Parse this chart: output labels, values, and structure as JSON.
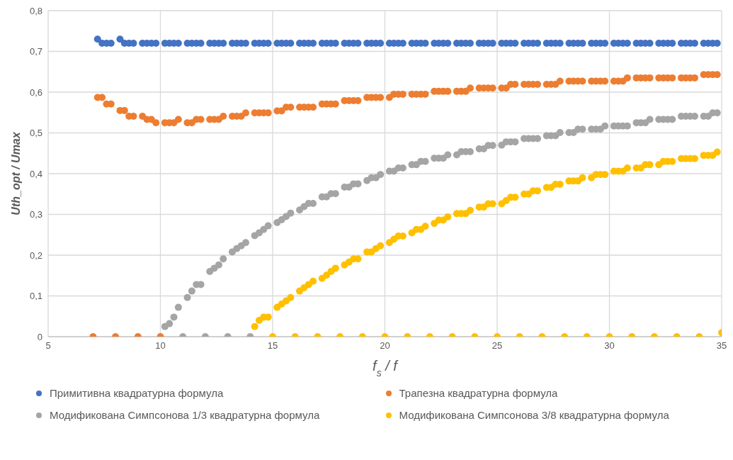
{
  "chart_data": {
    "type": "scatter",
    "xlabel": "f$_{s}$ / f",
    "ylabel": "Uth_opt / Umax",
    "xlim": [
      5,
      35
    ],
    "ylim": [
      0,
      0.8
    ],
    "xticks": [
      5,
      10,
      15,
      20,
      25,
      30,
      35
    ],
    "yticks": [
      0,
      {
        "value": 0.1,
        "label": "0,1"
      },
      {
        "value": 0.2,
        "label": "0,2"
      },
      {
        "value": 0.3,
        "label": "0,3"
      },
      {
        "value": 0.4,
        "label": "0,4"
      },
      {
        "value": 0.5,
        "label": "0,5"
      },
      {
        "value": 0.6,
        "label": "0,6"
      },
      {
        "value": 0.7,
        "label": "0,7"
      },
      {
        "value": 0.8,
        "label": "0,8"
      }
    ],
    "grid": true,
    "legend": "bottom",
    "marker": "circle",
    "series": [
      {
        "name": "Примитивна квадратурна формула",
        "color": "#4472c4",
        "x": [
          7.2,
          7.4,
          7.6,
          7.8,
          8.2,
          8.4,
          8.6,
          8.8,
          9.2,
          9.4,
          9.6,
          9.8,
          10.2,
          10.4,
          10.6,
          10.8,
          11.2,
          11.4,
          11.6,
          11.8,
          12.2,
          12.4,
          12.6,
          12.8,
          13.2,
          13.4,
          13.6,
          13.8,
          14.2,
          14.4,
          14.6,
          14.8,
          15.2,
          15.4,
          15.6,
          15.8,
          16.2,
          16.4,
          16.6,
          16.8,
          17.2,
          17.4,
          17.6,
          17.8,
          18.2,
          18.4,
          18.6,
          18.8,
          19.2,
          19.4,
          19.6,
          19.8,
          20.2,
          20.4,
          20.6,
          20.8,
          21.2,
          21.4,
          21.6,
          21.8,
          22.2,
          22.4,
          22.6,
          22.8,
          23.2,
          23.4,
          23.6,
          23.8,
          24.2,
          24.4,
          24.6,
          24.8,
          25.2,
          25.4,
          25.6,
          25.8,
          26.2,
          26.4,
          26.6,
          26.8,
          27.2,
          27.4,
          27.6,
          27.8,
          28.2,
          28.4,
          28.6,
          28.8,
          29.2,
          29.4,
          29.6,
          29.8,
          30.2,
          30.4,
          30.6,
          30.8,
          31.2,
          31.4,
          31.6,
          31.8,
          32.2,
          32.4,
          32.6,
          32.8,
          33.2,
          33.4,
          33.6,
          33.8,
          34.2,
          34.4,
          34.6,
          34.8
        ],
        "values": [
          0.73,
          0.72,
          0.72,
          0.72,
          0.73,
          0.72,
          0.72,
          0.72,
          0.72,
          0.72,
          0.72,
          0.72,
          0.72,
          0.72,
          0.72,
          0.72,
          0.72,
          0.72,
          0.72,
          0.72,
          0.72,
          0.72,
          0.72,
          0.72,
          0.72,
          0.72,
          0.72,
          0.72,
          0.72,
          0.72,
          0.72,
          0.72,
          0.72,
          0.72,
          0.72,
          0.72,
          0.72,
          0.72,
          0.72,
          0.72,
          0.72,
          0.72,
          0.72,
          0.72,
          0.72,
          0.72,
          0.72,
          0.72,
          0.72,
          0.72,
          0.72,
          0.72,
          0.72,
          0.72,
          0.72,
          0.72,
          0.72,
          0.72,
          0.72,
          0.72,
          0.72,
          0.72,
          0.72,
          0.72,
          0.72,
          0.72,
          0.72,
          0.72,
          0.72,
          0.72,
          0.72,
          0.72,
          0.72,
          0.72,
          0.72,
          0.72,
          0.72,
          0.72,
          0.72,
          0.72,
          0.72,
          0.72,
          0.72,
          0.72,
          0.72,
          0.72,
          0.72,
          0.72,
          0.72,
          0.72,
          0.72,
          0.72,
          0.72,
          0.72,
          0.72,
          0.72,
          0.72,
          0.72,
          0.72,
          0.72,
          0.72,
          0.72,
          0.72,
          0.72,
          0.72,
          0.72,
          0.72,
          0.72,
          0.72,
          0.72,
          0.72,
          0.72
        ]
      },
      {
        "name": "Трапезна квадратурна формула",
        "color": "#ed7d31",
        "x": [
          7,
          7.2,
          7.4,
          7.6,
          7.8,
          8,
          8.2,
          8.4,
          8.6,
          8.8,
          9,
          9.2,
          9.4,
          9.6,
          9.8,
          10,
          10.2,
          10.4,
          10.6,
          10.8,
          11.2,
          11.4,
          11.6,
          11.8,
          12.2,
          12.4,
          12.6,
          12.8,
          13.2,
          13.4,
          13.6,
          13.8,
          14.2,
          14.4,
          14.6,
          14.8,
          15.2,
          15.4,
          15.6,
          15.8,
          16.2,
          16.4,
          16.6,
          16.8,
          17.2,
          17.4,
          17.6,
          17.8,
          18.2,
          18.4,
          18.6,
          18.8,
          19.2,
          19.4,
          19.6,
          19.8,
          20.2,
          20.4,
          20.6,
          20.8,
          21.2,
          21.4,
          21.6,
          21.8,
          22.2,
          22.4,
          22.6,
          22.8,
          23.2,
          23.4,
          23.6,
          23.8,
          24.2,
          24.4,
          24.6,
          24.8,
          25.2,
          25.4,
          25.6,
          25.8,
          26.2,
          26.4,
          26.6,
          26.8,
          27.2,
          27.4,
          27.6,
          27.8,
          28.2,
          28.4,
          28.6,
          28.8,
          29.2,
          29.4,
          29.6,
          29.8,
          30.2,
          30.4,
          30.6,
          30.8,
          31.2,
          31.4,
          31.6,
          31.8,
          32.2,
          32.4,
          32.6,
          32.8,
          33.2,
          33.4,
          33.6,
          33.8,
          34.2,
          34.4,
          34.6,
          34.8
        ],
        "values": [
          0,
          0.587,
          0.587,
          0.571,
          0.571,
          0,
          0.555,
          0.555,
          0.541,
          0.541,
          0,
          0.541,
          0.533,
          0.533,
          0.525,
          0,
          0.525,
          0.525,
          0.525,
          0.533,
          0.525,
          0.525,
          0.533,
          0.533,
          0.533,
          0.533,
          0.533,
          0.541,
          0.541,
          0.541,
          0.541,
          0.549,
          0.549,
          0.549,
          0.549,
          0.549,
          0.554,
          0.554,
          0.563,
          0.563,
          0.563,
          0.563,
          0.563,
          0.563,
          0.571,
          0.571,
          0.571,
          0.571,
          0.579,
          0.579,
          0.579,
          0.579,
          0.587,
          0.587,
          0.587,
          0.587,
          0.587,
          0.595,
          0.595,
          0.595,
          0.595,
          0.595,
          0.595,
          0.595,
          0.602,
          0.602,
          0.602,
          0.602,
          0.602,
          0.602,
          0.602,
          0.61,
          0.61,
          0.61,
          0.61,
          0.61,
          0.61,
          0.61,
          0.619,
          0.619,
          0.619,
          0.619,
          0.619,
          0.619,
          0.619,
          0.619,
          0.619,
          0.627,
          0.627,
          0.627,
          0.627,
          0.627,
          0.627,
          0.627,
          0.627,
          0.627,
          0.627,
          0.627,
          0.627,
          0.635,
          0.635,
          0.635,
          0.635,
          0.635,
          0.635,
          0.635,
          0.635,
          0.635,
          0.635,
          0.635,
          0.635,
          0.635,
          0.643,
          0.643,
          0.643,
          0.643
        ]
      },
      {
        "name": "Модификована Симпсонова 1/3 квадратурна формула",
        "color": "#a5a5a5",
        "x": [
          10.2,
          10.4,
          10.6,
          10.8,
          11,
          11.2,
          11.4,
          11.6,
          11.8,
          12,
          12.2,
          12.4,
          12.6,
          12.8,
          13,
          13.2,
          13.4,
          13.6,
          13.8,
          14,
          14.2,
          14.4,
          14.6,
          14.8,
          15.2,
          15.4,
          15.6,
          15.8,
          16.2,
          16.4,
          16.6,
          16.8,
          17.2,
          17.4,
          17.6,
          17.8,
          18.2,
          18.4,
          18.6,
          18.8,
          19.2,
          19.4,
          19.6,
          19.8,
          20.2,
          20.4,
          20.6,
          20.8,
          21.2,
          21.4,
          21.6,
          21.8,
          22.2,
          22.4,
          22.6,
          22.8,
          23.2,
          23.4,
          23.6,
          23.8,
          24.2,
          24.4,
          24.6,
          24.8,
          25.2,
          25.4,
          25.6,
          25.8,
          26.2,
          26.4,
          26.6,
          26.8,
          27.2,
          27.4,
          27.6,
          27.8,
          28.2,
          28.4,
          28.6,
          28.8,
          29.2,
          29.4,
          29.6,
          29.8,
          30.2,
          30.4,
          30.6,
          30.8,
          31.2,
          31.4,
          31.6,
          31.8,
          32.2,
          32.4,
          32.6,
          32.8,
          33.2,
          33.4,
          33.6,
          33.8,
          34.2,
          34.4,
          34.6,
          34.8
        ],
        "values": [
          0.025,
          0.032,
          0.048,
          0.072,
          0,
          0.096,
          0.112,
          0.128,
          0.128,
          0,
          0.16,
          0.168,
          0.176,
          0.191,
          0,
          0.208,
          0.216,
          0.223,
          0.231,
          0,
          0.248,
          0.255,
          0.263,
          0.272,
          0.28,
          0.287,
          0.295,
          0.303,
          0.311,
          0.319,
          0.327,
          0.327,
          0.343,
          0.343,
          0.351,
          0.351,
          0.367,
          0.367,
          0.375,
          0.375,
          0.383,
          0.39,
          0.39,
          0.398,
          0.406,
          0.406,
          0.414,
          0.414,
          0.422,
          0.422,
          0.43,
          0.43,
          0.438,
          0.438,
          0.438,
          0.446,
          0.446,
          0.454,
          0.454,
          0.454,
          0.461,
          0.461,
          0.469,
          0.469,
          0.47,
          0.478,
          0.478,
          0.478,
          0.486,
          0.486,
          0.486,
          0.486,
          0.493,
          0.493,
          0.493,
          0.501,
          0.501,
          0.501,
          0.509,
          0.509,
          0.509,
          0.509,
          0.509,
          0.517,
          0.517,
          0.517,
          0.517,
          0.517,
          0.525,
          0.525,
          0.525,
          0.533,
          0.533,
          0.533,
          0.533,
          0.533,
          0.541,
          0.541,
          0.541,
          0.541,
          0.541,
          0.541,
          0.549,
          0.549
        ]
      },
      {
        "name": "Модификована Симпсонова 3/8 квадратурна формула",
        "color": "#ffc000",
        "x": [
          14.2,
          14.4,
          14.6,
          14.8,
          15,
          15.2,
          15.4,
          15.6,
          15.8,
          16,
          16.2,
          16.4,
          16.6,
          16.8,
          17,
          17.2,
          17.4,
          17.6,
          17.8,
          18,
          18.2,
          18.4,
          18.6,
          18.8,
          19,
          19.2,
          19.4,
          19.6,
          19.8,
          20,
          20.2,
          20.4,
          20.6,
          20.8,
          21,
          21.2,
          21.4,
          21.6,
          21.8,
          22,
          22.2,
          22.4,
          22.6,
          22.8,
          23,
          23.2,
          23.4,
          23.6,
          23.8,
          24,
          24.2,
          24.4,
          24.6,
          24.8,
          25,
          25.2,
          25.4,
          25.6,
          25.8,
          26,
          26.2,
          26.4,
          26.6,
          26.8,
          27,
          27.2,
          27.4,
          27.6,
          27.8,
          28,
          28.2,
          28.4,
          28.6,
          28.8,
          29,
          29.2,
          29.4,
          29.6,
          29.8,
          30,
          30.2,
          30.4,
          30.6,
          30.8,
          31,
          31.2,
          31.4,
          31.6,
          31.8,
          32,
          32.2,
          32.4,
          32.6,
          32.8,
          33,
          33.2,
          33.4,
          33.6,
          33.8,
          34,
          34.2,
          34.4,
          34.6,
          34.8,
          35
        ],
        "values": [
          0.025,
          0.04,
          0.048,
          0.048,
          0,
          0.072,
          0.08,
          0.088,
          0.096,
          0,
          0.112,
          0.12,
          0.128,
          0.136,
          0,
          0.143,
          0.151,
          0.16,
          0.168,
          0,
          0.176,
          0.183,
          0.191,
          0.191,
          0,
          0.208,
          0.208,
          0.216,
          0.223,
          0,
          0.231,
          0.239,
          0.247,
          0.247,
          0,
          0.255,
          0.263,
          0.263,
          0.271,
          0,
          0.278,
          0.286,
          0.286,
          0.294,
          0,
          0.302,
          0.302,
          0.302,
          0.31,
          0,
          0.318,
          0.318,
          0.326,
          0.326,
          0,
          0.326,
          0.334,
          0.342,
          0.342,
          0,
          0.35,
          0.35,
          0.358,
          0.358,
          0,
          0.366,
          0.366,
          0.374,
          0.374,
          0,
          0.382,
          0.382,
          0.382,
          0.39,
          0,
          0.39,
          0.398,
          0.398,
          0.398,
          0,
          0.406,
          0.406,
          0.406,
          0.414,
          0,
          0.414,
          0.414,
          0.422,
          0.422,
          0,
          0.422,
          0.43,
          0.43,
          0.43,
          0,
          0.437,
          0.437,
          0.437,
          0.437,
          0,
          0.445,
          0.445,
          0.445,
          0.453,
          0.01
        ]
      }
    ]
  }
}
